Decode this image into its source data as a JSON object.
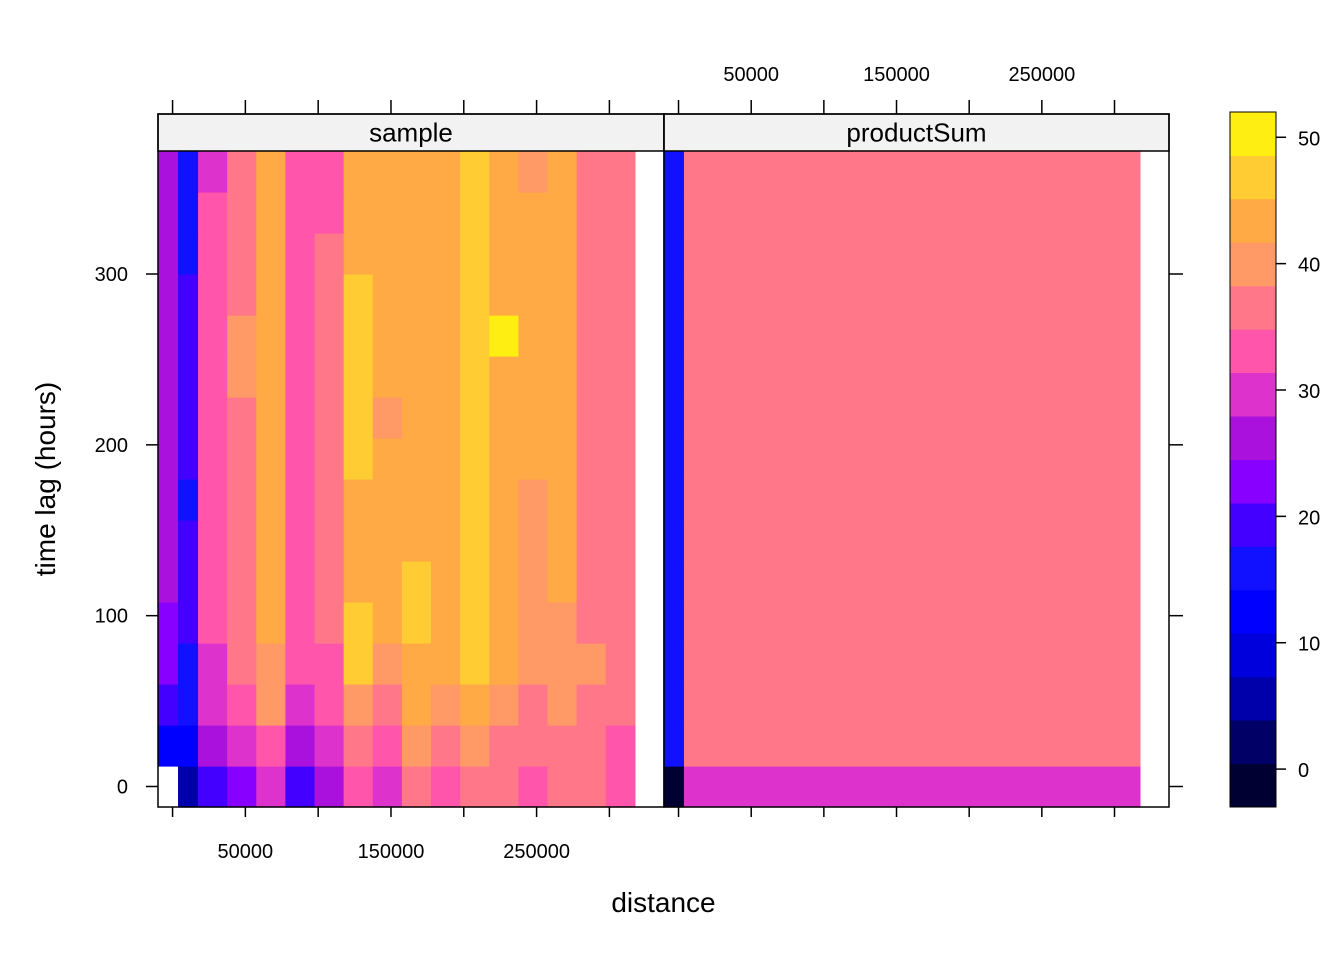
{
  "chart_data": {
    "type": "heatmap",
    "xlabel": "distance",
    "ylabel": "time lag (hours)",
    "xlim": [
      -10000,
      337500
    ],
    "ylim": [
      -12,
      372
    ],
    "x_ticks": [
      0,
      50000,
      100000,
      150000,
      200000,
      250000,
      300000
    ],
    "x_tick_labels": [
      "50000",
      "150000",
      "250000"
    ],
    "x_tick_label_values": [
      50000,
      150000,
      250000
    ],
    "y_ticks": [
      0,
      100,
      200,
      300
    ],
    "y_tick_labels": [
      "0",
      "100",
      "200",
      "300"
    ],
    "x_breaks": [
      -10000,
      3750,
      17500,
      37500,
      57500,
      77500,
      97500,
      117500,
      137500,
      157500,
      177500,
      197500,
      217500,
      237500,
      257500,
      277500,
      297500,
      317500,
      337500
    ],
    "y_breaks": [
      -12,
      12,
      36,
      60,
      84,
      108,
      132,
      156,
      180,
      204,
      228,
      252,
      276,
      300,
      324,
      348,
      372
    ],
    "colorkey": {
      "breaks": [
        -3,
        0.44,
        3.88,
        7.31,
        10.75,
        14.19,
        17.63,
        21.06,
        24.5,
        27.94,
        31.38,
        34.81,
        38.25,
        41.69,
        45.13,
        48.56,
        52
      ],
      "colors": [
        "#000033",
        "#000066",
        "#0000AA",
        "#0000DD",
        "#0000FF",
        "#1111FF",
        "#4400FF",
        "#8800FF",
        "#AA11DD",
        "#DD33CC",
        "#FF55AA",
        "#FF7788",
        "#FF9966",
        "#FFAA44",
        "#FFCC33",
        "#FFEE11",
        "#FFFF66"
      ],
      "ticks": [
        0,
        10,
        20,
        30,
        40,
        50
      ],
      "tick_labels": [
        "0",
        "10",
        "20",
        "30",
        "40",
        "50"
      ]
    },
    "panels": [
      {
        "name": "sample",
        "values": [
          [
            null,
            5,
            18,
            23,
            30,
            20,
            27,
            33,
            31,
            35,
            33,
            36,
            36,
            33,
            36,
            35,
            34
          ],
          [
            13,
            13,
            25,
            30,
            33,
            27,
            30,
            36,
            33,
            39,
            37,
            39,
            37,
            37,
            36,
            36,
            34
          ],
          [
            21,
            16,
            30,
            33,
            39,
            31,
            33,
            40,
            37,
            42,
            41,
            44,
            40,
            37,
            40,
            38,
            37
          ],
          [
            23,
            16,
            31,
            36,
            39,
            33,
            33,
            46,
            40,
            44,
            42,
            48,
            42,
            40,
            39,
            39,
            38
          ],
          [
            23,
            18,
            32,
            36,
            44,
            33,
            36,
            46,
            44,
            48,
            42,
            48,
            42,
            40,
            40,
            38,
            38
          ],
          [
            26,
            19,
            33,
            36,
            44,
            33,
            36,
            45,
            45,
            48,
            42,
            48,
            42,
            40,
            42,
            38,
            38
          ],
          [
            26,
            18,
            32,
            36,
            44,
            33,
            36,
            44,
            42,
            45,
            42,
            47,
            42,
            40,
            42,
            38,
            38
          ],
          [
            26,
            15,
            33,
            36,
            44,
            33,
            36,
            44,
            42,
            45,
            44,
            47,
            42,
            40,
            42,
            38,
            38
          ],
          [
            26,
            18,
            32,
            36,
            44,
            33,
            36,
            47,
            42,
            45,
            42,
            47,
            42,
            42,
            42,
            38,
            38
          ],
          [
            26,
            18,
            32,
            36,
            44,
            33,
            36,
            47,
            40,
            45,
            42,
            47,
            42,
            42,
            42,
            38,
            38
          ],
          [
            26,
            18,
            32,
            39,
            44,
            33,
            36,
            47,
            42,
            45,
            44,
            46,
            42,
            42,
            42,
            38,
            38
          ],
          [
            26,
            19,
            32,
            39,
            44,
            33,
            36,
            47,
            42,
            45,
            44,
            46,
            50,
            42,
            42,
            38,
            38
          ],
          [
            26,
            18,
            32,
            36,
            44,
            33,
            36,
            47,
            44,
            45,
            44,
            46,
            42,
            42,
            42,
            38,
            38
          ],
          [
            26,
            15,
            32,
            36,
            44,
            33,
            36,
            44,
            42,
            45,
            42,
            47,
            42,
            42,
            42,
            38,
            38
          ],
          [
            26,
            15,
            32,
            36,
            44,
            33,
            33,
            44,
            42,
            45,
            42,
            47,
            42,
            42,
            42,
            38,
            38
          ],
          [
            26,
            15,
            30,
            36,
            45,
            33,
            33,
            44,
            42,
            45,
            42,
            47,
            42,
            40,
            42,
            38,
            38
          ]
        ]
      },
      {
        "name": "productSum",
        "values": [
          [
            0,
            31,
            31,
            31,
            31,
            31,
            31,
            31,
            31,
            31,
            31,
            31,
            31,
            31,
            31,
            31,
            31
          ],
          [
            15,
            37,
            37,
            37,
            37,
            37,
            37,
            37,
            37,
            37,
            37,
            37,
            37,
            37,
            37,
            37,
            37
          ],
          [
            15,
            37,
            37,
            37,
            37,
            37,
            37,
            37,
            37,
            37,
            37,
            37,
            37,
            37,
            37,
            37,
            37
          ],
          [
            15,
            37,
            37,
            37,
            37,
            37,
            37,
            37,
            37,
            37,
            37,
            37,
            37,
            37,
            37,
            37,
            37
          ],
          [
            15,
            37,
            37,
            37,
            37,
            37,
            37,
            37,
            37,
            37,
            37,
            37,
            37,
            37,
            37,
            37,
            37
          ],
          [
            15,
            37,
            37,
            37,
            37,
            37,
            37,
            37,
            37,
            37,
            37,
            37,
            37,
            37,
            37,
            37,
            37
          ],
          [
            15,
            37,
            37,
            37,
            37,
            37,
            37,
            37,
            37,
            37,
            37,
            37,
            37,
            37,
            37,
            37,
            37
          ],
          [
            15,
            37,
            37,
            37,
            37,
            37,
            37,
            37,
            37,
            37,
            37,
            37,
            37,
            37,
            37,
            37,
            37
          ],
          [
            15,
            37,
            37,
            37,
            37,
            37,
            37,
            37,
            37,
            37,
            37,
            37,
            37,
            37,
            37,
            37,
            37
          ],
          [
            15,
            37,
            37,
            37,
            37,
            37,
            37,
            37,
            37,
            37,
            37,
            37,
            37,
            37,
            37,
            37,
            37
          ],
          [
            15,
            37,
            37,
            37,
            37,
            37,
            37,
            37,
            37,
            37,
            37,
            37,
            37,
            37,
            37,
            37,
            37
          ],
          [
            15,
            37,
            37,
            37,
            37,
            37,
            37,
            37,
            37,
            37,
            37,
            37,
            37,
            37,
            37,
            37,
            37
          ],
          [
            15,
            37,
            37,
            37,
            37,
            37,
            37,
            37,
            37,
            37,
            37,
            37,
            37,
            37,
            37,
            37,
            37
          ],
          [
            15,
            37,
            37,
            37,
            37,
            37,
            37,
            37,
            37,
            37,
            37,
            37,
            37,
            37,
            37,
            37,
            37
          ],
          [
            15,
            37,
            37,
            37,
            37,
            37,
            37,
            37,
            37,
            37,
            37,
            37,
            37,
            37,
            37,
            37,
            37
          ],
          [
            15,
            37,
            37,
            37,
            37,
            37,
            37,
            37,
            37,
            37,
            37,
            37,
            37,
            37,
            37,
            37,
            37
          ]
        ]
      }
    ],
    "colors": {
      "missing": "#ffffff",
      "strip": "#f2f2f2",
      "frame": "#000000"
    }
  }
}
